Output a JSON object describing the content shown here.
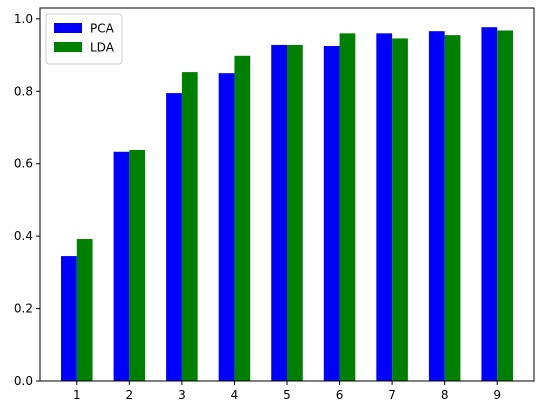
{
  "chart_data": {
    "type": "bar",
    "title": "",
    "xlabel": "",
    "ylabel": "",
    "categories": [
      "1",
      "2",
      "3",
      "4",
      "5",
      "6",
      "7",
      "8",
      "9"
    ],
    "series": [
      {
        "name": "PCA",
        "color": "#0000ff",
        "values": [
          0.345,
          0.633,
          0.795,
          0.85,
          0.928,
          0.925,
          0.96,
          0.966,
          0.977
        ]
      },
      {
        "name": "LDA",
        "color": "#008000",
        "values": [
          0.392,
          0.638,
          0.853,
          0.898,
          0.928,
          0.96,
          0.946,
          0.955,
          0.968
        ]
      }
    ],
    "ylim": [
      0,
      1.03
    ],
    "yticks": [
      0.0,
      0.2,
      0.4,
      0.6,
      0.8,
      1.0
    ],
    "ytick_labels": [
      "0.0",
      "0.2",
      "0.4",
      "0.6",
      "0.8",
      "1.0"
    ],
    "grid": false,
    "legend_position": "top-left"
  }
}
